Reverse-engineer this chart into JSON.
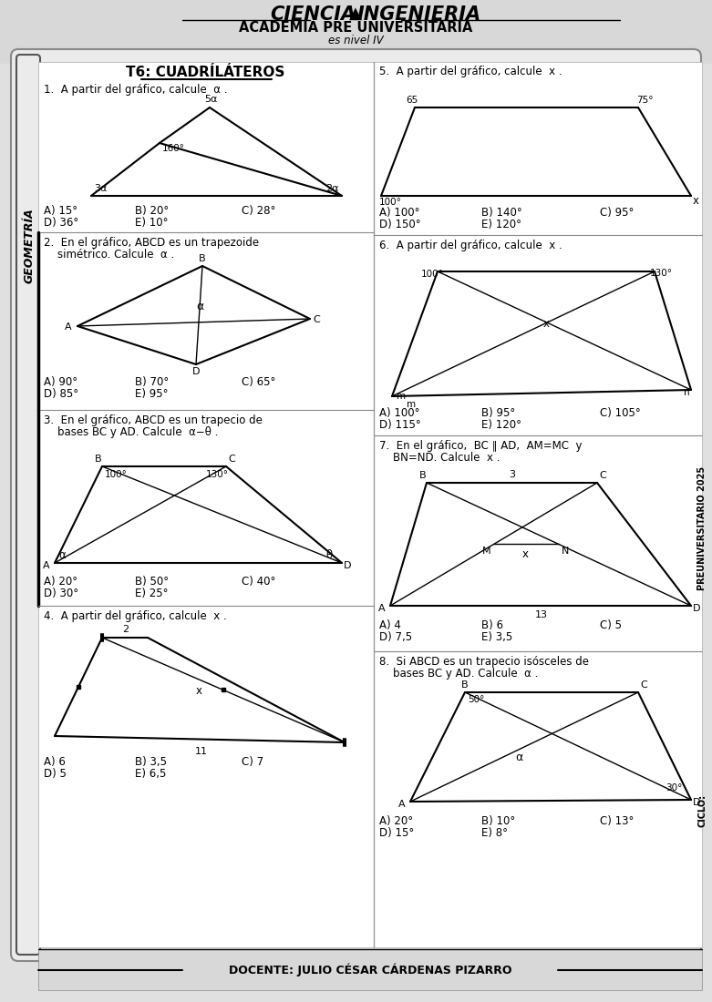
{
  "bg_color": "#c8c8c8",
  "content_color": "#e0e0e0",
  "white": "#ffffff",
  "title_logo": "CIENCIA▲INGENIERIA",
  "title_academy": "ACADEMIA PRE UNIVERSITARIA",
  "title_sub": "es nivel IV",
  "topic": "T6: CUADRÍLÁTEROS",
  "footer": "DOCENTE: JULIO CÉSAR CÁRDENAS PIZARRO",
  "q1_line1": "1.  A partir del gráfico, calcule  α .",
  "q2_line1": "2.  En el gráfico, ABCD es un trapezoide",
  "q2_line2": "    simétrico. Calcule  α .",
  "q3_line1": "3.  En el gráfico, ABCD es un trapecio de",
  "q3_line2": "    bases BC y AD. Calcule  α−θ .",
  "q4_line1": "4.  A partir del gráfico, calcule  x .",
  "q5_line1": "5.  A partir del gráfico, calcule  x .",
  "q6_line1": "6.  A partir del gráfico, calcule  x .",
  "q7_line1": "7.  En el gráfico,  BC ∥ AD,  AM=MC  y",
  "q7_line2": "    BN=ND. Calcule  x .",
  "q8_line1": "8.  Si ABCD es un trapecio isósceles de",
  "q8_line2": "    bases BC y AD. Calcule  α .",
  "geometria": "GEOMETRÍA",
  "preuniv": "PREUNIVERSITARIO 2025",
  "ciclo": "CICLO:"
}
